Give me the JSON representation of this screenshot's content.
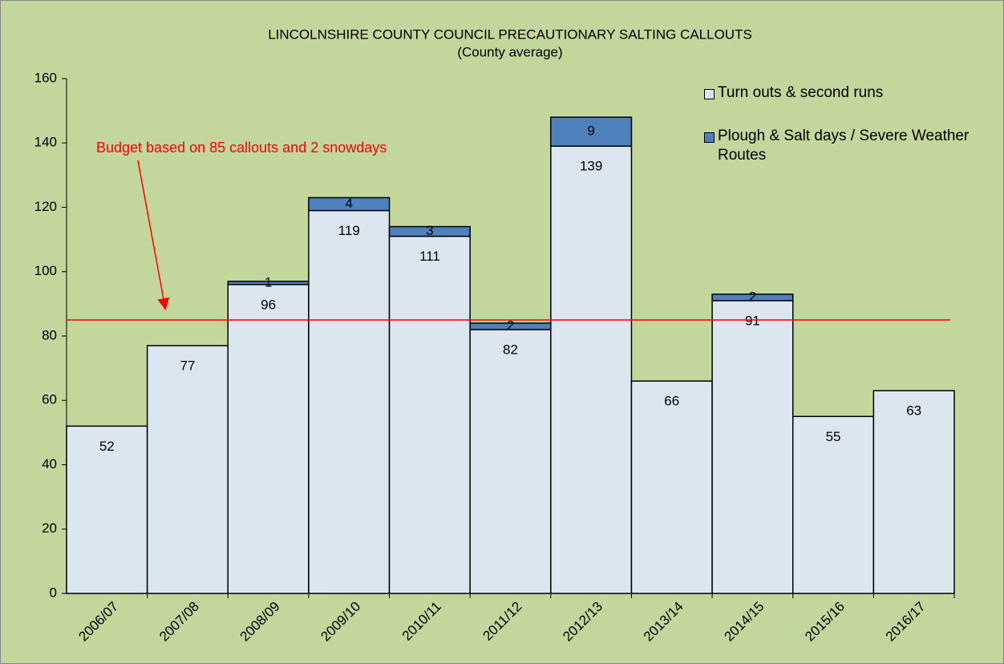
{
  "chart_data": {
    "type": "stacked_bar",
    "title": "LINCOLNSHIRE COUNTY COUNCIL PRECAUTIONARY SALTING CALLOUTS",
    "subtitle": "(County average)",
    "categories": [
      "2006/07",
      "2007/08",
      "2008/09",
      "2009/10",
      "2010/11",
      "2011/12",
      "2012/13",
      "2013/14",
      "2014/15",
      "2015/16",
      "2016/17"
    ],
    "series": [
      {
        "name": "Turn outs & second runs",
        "color": "#dce6f1",
        "values": [
          52,
          77,
          96,
          119,
          111,
          82,
          139,
          66,
          91,
          55,
          63
        ]
      },
      {
        "name": "Plough & Salt days / Severe Weather Routes",
        "color": "#4f81bd",
        "values": [
          null,
          null,
          1,
          4,
          3,
          2,
          9,
          null,
          2,
          null,
          null
        ]
      }
    ],
    "ylim": [
      0,
      160
    ],
    "yticks": [
      0,
      20,
      40,
      60,
      80,
      100,
      120,
      140,
      160
    ],
    "budget_line": 85,
    "budget_color": "#ff0000",
    "annotation": "Budget based on 85 callouts and 2 snowdays",
    "legend": "upper right"
  }
}
